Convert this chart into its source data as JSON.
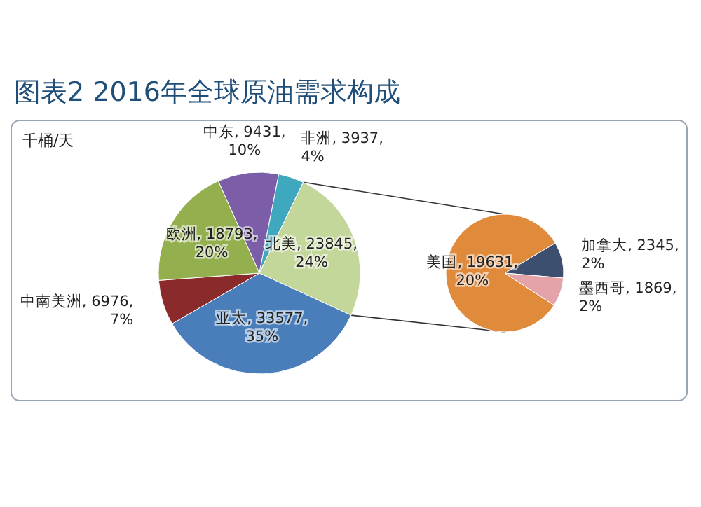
{
  "chart_data": [
    {
      "type": "pie",
      "title": "图表2 2016年全球原油需求构成",
      "annotations": [
        "千桶/天"
      ],
      "categories": [
        "中东",
        "非洲",
        "北美",
        "亚太",
        "中南美洲",
        "欧洲"
      ],
      "values": [
        9431,
        3937,
        23845,
        33577,
        6976,
        18793
      ],
      "value_labels": [
        "9431, 10%",
        "3937, 4%",
        "23845, 24%",
        "33577, 35%",
        "6976, 7%",
        "18793, 20%"
      ],
      "colors": [
        "#7b5ea7",
        "#3fa7be",
        "#c4d79b",
        "#4a7ebb",
        "#8b2a2a",
        "#94b04e"
      ]
    },
    {
      "type": "pie",
      "categories": [
        "美国",
        "加拿大",
        "墨西哥"
      ],
      "values": [
        19631,
        2345,
        1869
      ],
      "value_labels": [
        "19631, 20%",
        "2345, 2%",
        "1869, 2%"
      ],
      "colors": [
        "#e08a3c",
        "#3d4f6e",
        "#e4a3a8"
      ]
    }
  ]
}
